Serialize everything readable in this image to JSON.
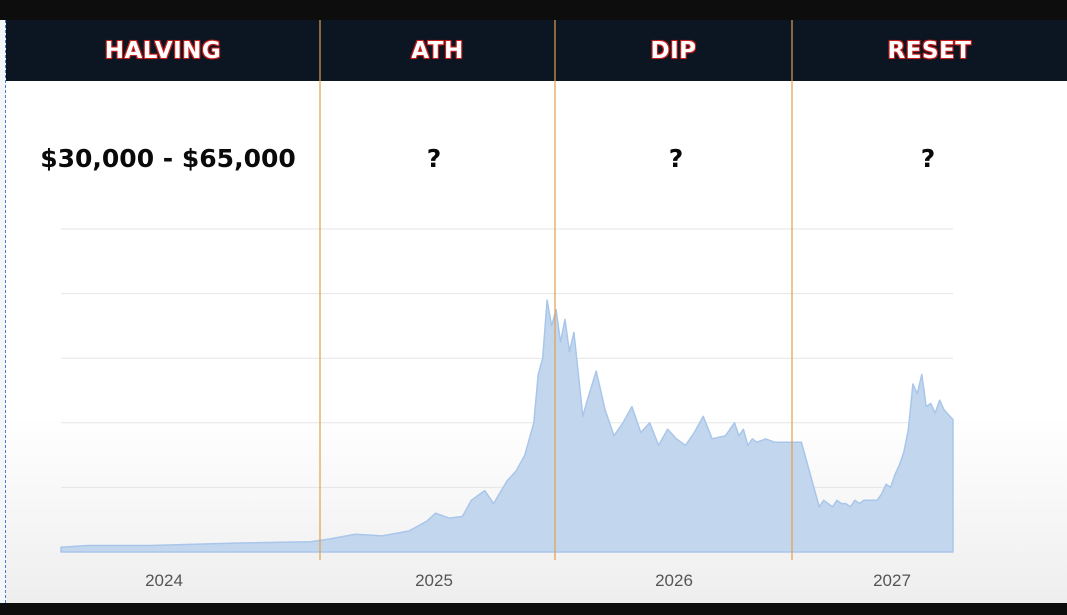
{
  "phases": [
    {
      "label": "HALVING",
      "price": "$30,000 - $65,000"
    },
    {
      "label": "ATH",
      "price": "?"
    },
    {
      "label": "DIP",
      "price": "?"
    },
    {
      "label": "RESET",
      "price": "?"
    }
  ],
  "colors": {
    "header_bg": "#0b1622",
    "header_text": "#ffffff",
    "header_text_outline": "#c8201e",
    "divider": "#e0a04a",
    "area_fill": "#c2d6ee",
    "area_stroke": "#a9c6ea",
    "gridline": "#e6e6e6",
    "tick_label": "#555555"
  },
  "chart_data": {
    "type": "area",
    "title": "",
    "xlabel": "",
    "ylabel": "",
    "grid": true,
    "legend": "none",
    "x_tick_labels": [
      "2024",
      "2025",
      "2026",
      "2027"
    ],
    "ylim": [
      0,
      100
    ],
    "series": [
      {
        "x": [
          0,
          0.03,
          0.1,
          0.2,
          0.28,
          0.3,
          0.33,
          0.36,
          0.39,
          0.41,
          0.42,
          0.435,
          0.45,
          0.46,
          0.475,
          0.485,
          0.5,
          0.51,
          0.52,
          0.53,
          0.535,
          0.54,
          0.545,
          0.55,
          0.555,
          0.56,
          0.565,
          0.57,
          0.575,
          0.58,
          0.585,
          0.59,
          0.6,
          0.605,
          0.61,
          0.62,
          0.63,
          0.64,
          0.65,
          0.66,
          0.67,
          0.68,
          0.69,
          0.7,
          0.71,
          0.72,
          0.73,
          0.745,
          0.755,
          0.76,
          0.765,
          0.77,
          0.775,
          0.78,
          0.79,
          0.8,
          0.81,
          0.82,
          0.83,
          0.84,
          0.85,
          0.855,
          0.86,
          0.865,
          0.87,
          0.875,
          0.88,
          0.885,
          0.89,
          0.895,
          0.9,
          0.905,
          0.91,
          0.915,
          0.92,
          0.925,
          0.93,
          0.935,
          0.94,
          0.945,
          0.95,
          0.955,
          0.96,
          0.965,
          0.97,
          0.975,
          0.98,
          0.985,
          0.99,
          1.0
        ],
        "values": [
          1.5,
          2,
          2,
          2.8,
          3.2,
          4,
          5.5,
          5,
          6.5,
          9.5,
          12,
          10.5,
          11,
          16,
          19,
          15,
          22,
          25,
          30,
          40,
          55,
          60,
          78,
          70,
          75,
          65,
          72,
          62,
          68,
          55,
          42,
          47,
          56,
          50,
          44,
          36,
          40,
          45,
          37,
          40,
          33,
          38,
          35,
          33,
          37,
          42,
          35,
          36,
          40,
          36,
          38,
          33,
          35,
          34,
          35,
          34,
          34,
          34,
          34,
          24,
          14,
          16,
          15,
          14,
          16,
          15,
          15,
          14,
          16,
          15,
          16,
          16,
          16,
          16,
          18,
          21,
          20,
          24,
          27,
          31,
          38,
          52,
          49,
          55,
          45,
          46,
          43,
          47,
          44,
          41
        ]
      }
    ]
  }
}
